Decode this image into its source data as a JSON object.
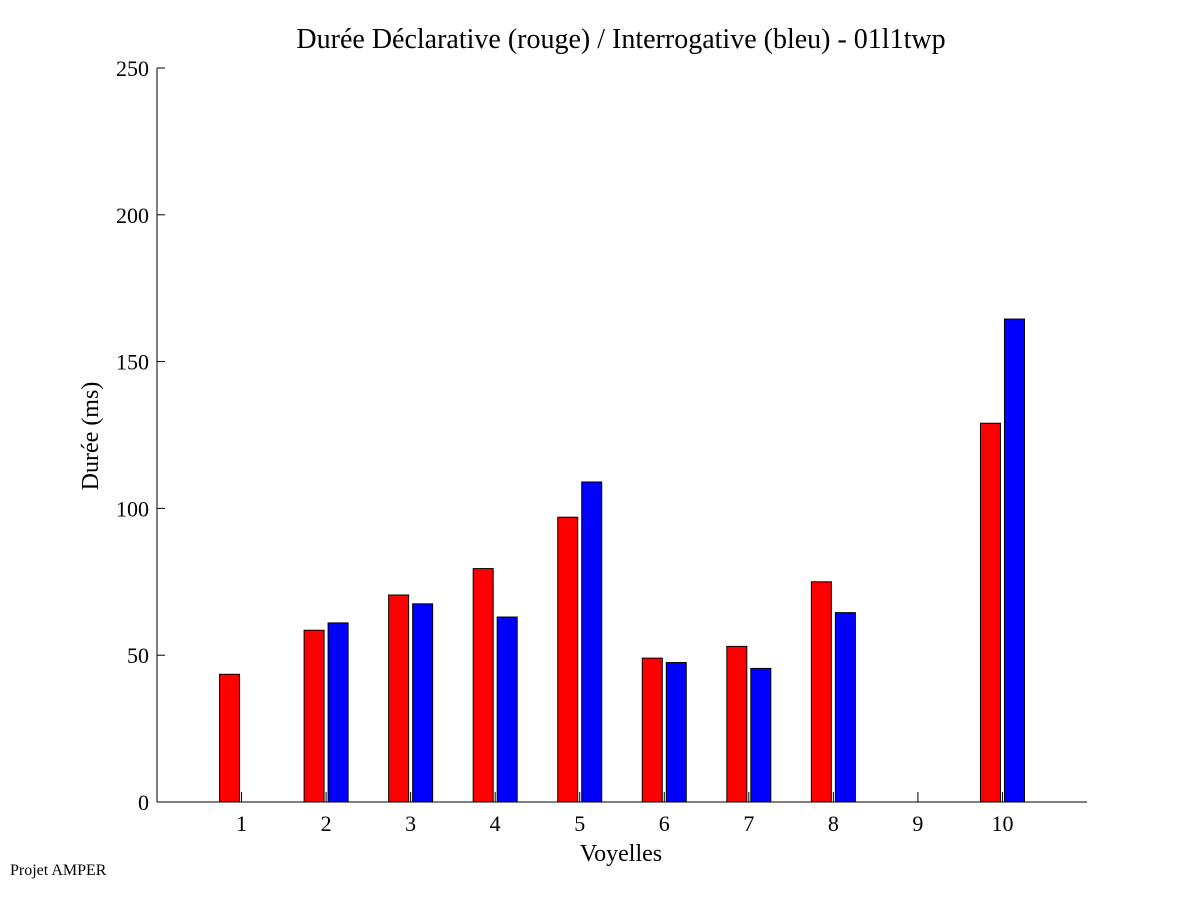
{
  "chart_data": {
    "type": "bar",
    "title": "Durée Déclarative (rouge) / Interrogative (bleu) - 01l1twp",
    "xlabel": "Voyelles",
    "ylabel": "Durée (ms)",
    "ylim": [
      0,
      250
    ],
    "yticks": [
      0,
      50,
      100,
      150,
      200,
      250
    ],
    "xlim": [
      0,
      11
    ],
    "categories": [
      "1",
      "2",
      "3",
      "4",
      "5",
      "6",
      "7",
      "8",
      "9",
      "10"
    ],
    "series": [
      {
        "color": "#ff0000",
        "values": [
          43.5,
          58.5,
          70.5,
          79.5,
          97,
          49,
          53,
          75,
          0,
          129
        ]
      },
      {
        "color": "#0000ff",
        "values": [
          0,
          61,
          67.5,
          63,
          109,
          47.5,
          45.5,
          64.5,
          0,
          164.5
        ]
      }
    ],
    "grid": false
  },
  "footer": {
    "text": "Projet AMPER"
  }
}
